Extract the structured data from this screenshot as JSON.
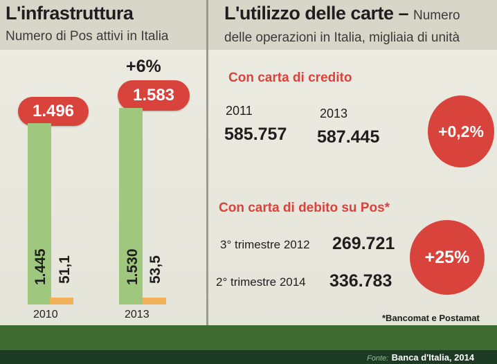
{
  "left_panel": {
    "title": "L'infrastruttura",
    "subtitle": "Numero di Pos attivi in Italia"
  },
  "right_panel": {
    "title": "L'utilizzo delle carte",
    "title_dash": " – ",
    "subtitle_a": "Numero",
    "subtitle_b": "delle operazioni in Italia, migliaia di unità",
    "credit": {
      "heading": "Con carta di credito",
      "year_a": "2011",
      "value_a": "585.757",
      "year_b": "2013",
      "value_b": "587.445",
      "change": "+0,2%"
    },
    "debit": {
      "heading": "Con carta di debito su Pos*",
      "period_a": "3° trimestre 2012",
      "value_a": "269.721",
      "period_b": "2° trimestre 2014",
      "value_b": "336.783",
      "change": "+25%"
    },
    "footnote": "*Bancomat e Postamat"
  },
  "source": {
    "prefix": "Fonte:",
    "text": "Banca d'Italia, 2014"
  },
  "colors": {
    "red": "#d8433c",
    "green_bar": "#9fc77d",
    "orange_bar": "#f2b25a",
    "footer_green": "#3f6b33"
  },
  "chart_data": {
    "type": "bar",
    "categories": [
      "2010",
      "2013"
    ],
    "totals": [
      "1.496",
      "1.583"
    ],
    "total_values": [
      1496,
      1583
    ],
    "growth_label": "+6%",
    "series": [
      {
        "values": [
          1445,
          1530
        ],
        "labels": [
          "1.445",
          "1.530"
        ],
        "color": "#9fc77d"
      },
      {
        "values": [
          51.1,
          53.5
        ],
        "labels": [
          "51,1",
          "53,5"
        ],
        "color": "#f2b25a"
      }
    ],
    "ylim": [
      0,
      1583
    ]
  }
}
